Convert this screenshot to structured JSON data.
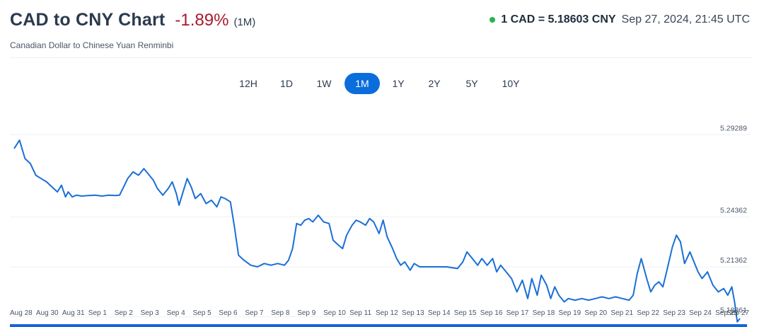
{
  "header": {
    "title": "CAD to CNY Chart",
    "change": "-1.89%",
    "period": "(1M)",
    "subtitle": "Canadian Dollar to Chinese Yuan Renminbi",
    "rate": "1 CAD = 5.18603 CNY",
    "timestamp": "Sep 27, 2024, 21:45 UTC"
  },
  "tabs": [
    {
      "label": "12H",
      "active": false
    },
    {
      "label": "1D",
      "active": false
    },
    {
      "label": "1W",
      "active": false
    },
    {
      "label": "1M",
      "active": true
    },
    {
      "label": "1Y",
      "active": false
    },
    {
      "label": "2Y",
      "active": false
    },
    {
      "label": "5Y",
      "active": false
    },
    {
      "label": "10Y",
      "active": false
    }
  ],
  "colors": {
    "line": "#1a6fd6",
    "change_negative": "#a8192e",
    "live_dot": "#2bb24c",
    "active_tab": "#0a6ddc"
  },
  "chart_data": {
    "type": "line",
    "x_tick_labels": [
      "Aug 28",
      "Aug 30",
      "Aug 31",
      "Sep 1",
      "Sep 2",
      "Sep 3",
      "Sep 4",
      "Sep 5",
      "Sep 6",
      "Sep 7",
      "Sep 8",
      "Sep 9",
      "Sep 10",
      "Sep 11",
      "Sep 12",
      "Sep 13",
      "Sep 14",
      "Sep 15",
      "Sep 16",
      "Sep 17",
      "Sep 18",
      "Sep 19",
      "Sep 20",
      "Sep 21",
      "Sep 22",
      "Sep 23",
      "Sep 24",
      "Sep 25",
      "Sep 27"
    ],
    "y_tick_values": [
      5.29289,
      5.24362,
      5.21362,
      5.18361
    ],
    "y_tick_labels": [
      "5.29289",
      "5.24362",
      "5.21362",
      "5.18361"
    ],
    "grid": true,
    "series": [
      {
        "points": [
          [
            0.0,
            5.288
          ],
          [
            0.4,
            5.293
          ],
          [
            0.8,
            5.282
          ],
          [
            1.2,
            5.279
          ],
          [
            1.6,
            5.272
          ],
          [
            2.0,
            5.27
          ],
          [
            2.4,
            5.268
          ],
          [
            2.8,
            5.265
          ],
          [
            3.2,
            5.262
          ],
          [
            3.5,
            5.266
          ],
          [
            3.8,
            5.259
          ],
          [
            4.0,
            5.262
          ],
          [
            4.3,
            5.259
          ],
          [
            4.6,
            5.26
          ],
          [
            5.0,
            5.2595
          ],
          [
            5.5,
            5.2598
          ],
          [
            6.0,
            5.26
          ],
          [
            6.5,
            5.2595
          ],
          [
            7.0,
            5.26
          ],
          [
            7.5,
            5.2598
          ],
          [
            7.8,
            5.26
          ],
          [
            8.1,
            5.265
          ],
          [
            8.4,
            5.27
          ],
          [
            8.8,
            5.274
          ],
          [
            9.2,
            5.272
          ],
          [
            9.6,
            5.276
          ],
          [
            10.0,
            5.272
          ],
          [
            10.3,
            5.269
          ],
          [
            10.6,
            5.264
          ],
          [
            11.0,
            5.26
          ],
          [
            11.4,
            5.264
          ],
          [
            11.7,
            5.268
          ],
          [
            12.0,
            5.261
          ],
          [
            12.2,
            5.254
          ],
          [
            12.5,
            5.262
          ],
          [
            12.8,
            5.27
          ],
          [
            13.1,
            5.265
          ],
          [
            13.4,
            5.258
          ],
          [
            13.8,
            5.261
          ],
          [
            14.2,
            5.255
          ],
          [
            14.6,
            5.257
          ],
          [
            15.0,
            5.253
          ],
          [
            15.3,
            5.259
          ],
          [
            15.6,
            5.258
          ],
          [
            16.0,
            5.256
          ],
          [
            16.3,
            5.241
          ],
          [
            16.6,
            5.224
          ],
          [
            17.0,
            5.221
          ],
          [
            17.5,
            5.218
          ],
          [
            18.0,
            5.217
          ],
          [
            18.5,
            5.219
          ],
          [
            19.0,
            5.218
          ],
          [
            19.5,
            5.219
          ],
          [
            20.0,
            5.218
          ],
          [
            20.3,
            5.221
          ],
          [
            20.6,
            5.228
          ],
          [
            20.9,
            5.243
          ],
          [
            21.2,
            5.242
          ],
          [
            21.5,
            5.245
          ],
          [
            21.8,
            5.246
          ],
          [
            22.1,
            5.244
          ],
          [
            22.5,
            5.248
          ],
          [
            22.9,
            5.244
          ],
          [
            23.3,
            5.243
          ],
          [
            23.6,
            5.233
          ],
          [
            24.0,
            5.23
          ],
          [
            24.3,
            5.228
          ],
          [
            24.6,
            5.236
          ],
          [
            25.0,
            5.242
          ],
          [
            25.3,
            5.245
          ],
          [
            25.6,
            5.244
          ],
          [
            26.0,
            5.242
          ],
          [
            26.3,
            5.246
          ],
          [
            26.6,
            5.244
          ],
          [
            27.0,
            5.237
          ],
          [
            27.3,
            5.245
          ],
          [
            27.6,
            5.235
          ],
          [
            28.0,
            5.228
          ],
          [
            28.3,
            5.222
          ],
          [
            28.6,
            5.218
          ],
          [
            28.9,
            5.22
          ],
          [
            29.3,
            5.215
          ],
          [
            29.6,
            5.219
          ],
          [
            30.0,
            5.217
          ],
          [
            31.0,
            5.217
          ],
          [
            32.0,
            5.217
          ],
          [
            32.8,
            5.216
          ],
          [
            33.2,
            5.22
          ],
          [
            33.5,
            5.226
          ],
          [
            33.9,
            5.222
          ],
          [
            34.3,
            5.218
          ],
          [
            34.6,
            5.222
          ],
          [
            35.0,
            5.218
          ],
          [
            35.4,
            5.222
          ],
          [
            35.7,
            5.214
          ],
          [
            36.0,
            5.218
          ],
          [
            36.4,
            5.214
          ],
          [
            36.8,
            5.21
          ],
          [
            37.2,
            5.202
          ],
          [
            37.6,
            5.209
          ],
          [
            38.0,
            5.198
          ],
          [
            38.3,
            5.21
          ],
          [
            38.7,
            5.2
          ],
          [
            39.0,
            5.212
          ],
          [
            39.4,
            5.206
          ],
          [
            39.7,
            5.198
          ],
          [
            40.0,
            5.205
          ],
          [
            40.3,
            5.2
          ],
          [
            40.7,
            5.196
          ],
          [
            41.0,
            5.198
          ],
          [
            41.5,
            5.197
          ],
          [
            42.0,
            5.198
          ],
          [
            42.5,
            5.197
          ],
          [
            43.0,
            5.198
          ],
          [
            43.5,
            5.199
          ],
          [
            44.0,
            5.198
          ],
          [
            44.5,
            5.199
          ],
          [
            45.0,
            5.198
          ],
          [
            45.5,
            5.197
          ],
          [
            45.8,
            5.2
          ],
          [
            46.1,
            5.213
          ],
          [
            46.4,
            5.222
          ],
          [
            46.8,
            5.21
          ],
          [
            47.1,
            5.202
          ],
          [
            47.4,
            5.206
          ],
          [
            47.7,
            5.208
          ],
          [
            48.0,
            5.205
          ],
          [
            48.3,
            5.215
          ],
          [
            48.7,
            5.229
          ],
          [
            49.0,
            5.236
          ],
          [
            49.3,
            5.232
          ],
          [
            49.6,
            5.219
          ],
          [
            50.0,
            5.226
          ],
          [
            50.3,
            5.22
          ],
          [
            50.6,
            5.214
          ],
          [
            50.9,
            5.21
          ],
          [
            51.3,
            5.214
          ],
          [
            51.7,
            5.206
          ],
          [
            52.1,
            5.202
          ],
          [
            52.5,
            5.204
          ],
          [
            52.8,
            5.2
          ],
          [
            53.1,
            5.205
          ],
          [
            53.3,
            5.196
          ],
          [
            53.5,
            5.184
          ],
          [
            53.7,
            5.186
          ]
        ]
      }
    ]
  }
}
